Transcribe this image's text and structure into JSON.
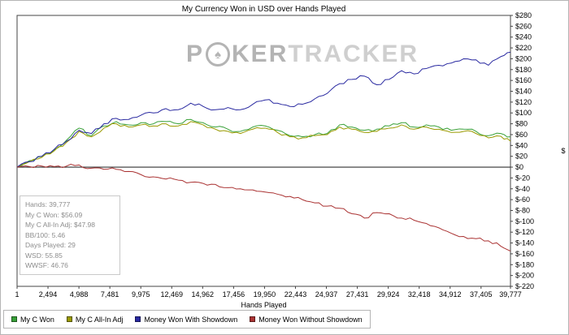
{
  "watermark": {
    "p": "P",
    "spade_glyph": "♠",
    "ker": "KER",
    "tracker": "TRACKER"
  },
  "stats_box": {
    "lines": [
      "Hands: 39,777",
      "My C Won: $56.09",
      "My C All-In Adj: $47.98",
      "BB/100: 5.46",
      "Days Played: 29",
      "WSD: 55.85",
      "WWSF: 46.76"
    ]
  },
  "chart_data": {
    "type": "line",
    "title": "My Currency Won in USD over Hands Played",
    "xlabel": "Hands Played",
    "ylabel": "$",
    "xlim": [
      1,
      39777
    ],
    "ylim": [
      -220,
      280
    ],
    "y_tick_step": 20,
    "grid": false,
    "zero_line": true,
    "legend_position": "bottom-left",
    "x_ticks": {
      "values": [
        1,
        2494,
        4988,
        7481,
        9975,
        12469,
        14962,
        17456,
        19950,
        22443,
        24937,
        27431,
        29924,
        32418,
        34912,
        37405,
        39777
      ],
      "labels": [
        "1",
        "2,494",
        "4,988",
        "7,481",
        "9,975",
        "12,469",
        "14,962",
        "17,456",
        "19,950",
        "22,443",
        "24,937",
        "27,431",
        "29,924",
        "32,418",
        "34,912",
        "37,405",
        "39,777"
      ]
    },
    "x": [
      1,
      1000,
      2000,
      3000,
      4000,
      5000,
      6000,
      7000,
      8000,
      9000,
      10000,
      11000,
      12000,
      13000,
      14000,
      15000,
      16000,
      17000,
      18000,
      19000,
      20000,
      21000,
      22000,
      23000,
      24000,
      25000,
      26000,
      27000,
      28000,
      29000,
      30000,
      31000,
      32000,
      33000,
      34000,
      35000,
      36000,
      37000,
      38000,
      39000,
      39777
    ],
    "series": [
      {
        "name": "My C Won",
        "color": "#38a038",
        "values": [
          0,
          12,
          20,
          32,
          50,
          72,
          58,
          76,
          84,
          78,
          82,
          80,
          84,
          80,
          88,
          82,
          74,
          70,
          66,
          74,
          76,
          68,
          58,
          56,
          60,
          62,
          78,
          74,
          68,
          70,
          76,
          82,
          74,
          78,
          74,
          68,
          70,
          66,
          58,
          62,
          56.09
        ]
      },
      {
        "name": "My C All-In Adj",
        "color": "#9a9a00",
        "values": [
          0,
          10,
          18,
          30,
          46,
          66,
          56,
          72,
          80,
          74,
          78,
          76,
          80,
          76,
          84,
          78,
          70,
          66,
          62,
          70,
          72,
          64,
          56,
          54,
          58,
          60,
          74,
          70,
          64,
          66,
          72,
          78,
          70,
          74,
          70,
          64,
          66,
          62,
          54,
          57,
          47.98
        ]
      },
      {
        "name": "Money Won With Showdown",
        "color": "#2828a0",
        "values": [
          0,
          10,
          20,
          33,
          48,
          68,
          62,
          80,
          90,
          88,
          96,
          100,
          108,
          106,
          118,
          112,
          106,
          110,
          106,
          116,
          124,
          118,
          112,
          116,
          126,
          136,
          154,
          162,
          168,
          152,
          162,
          178,
          172,
          182,
          188,
          192,
          200,
          198,
          188,
          204,
          212
        ]
      },
      {
        "name": "Money Won Without Showdown",
        "color": "#aa3232",
        "values": [
          0,
          1,
          2,
          1,
          2,
          4,
          -2,
          -4,
          -4,
          -8,
          -14,
          -18,
          -22,
          -24,
          -28,
          -30,
          -32,
          -38,
          -40,
          -42,
          -46,
          -50,
          -54,
          -60,
          -66,
          -72,
          -76,
          -86,
          -94,
          -84,
          -86,
          -94,
          -98,
          -104,
          -112,
          -122,
          -128,
          -132,
          -136,
          -146,
          -155
        ]
      }
    ]
  }
}
